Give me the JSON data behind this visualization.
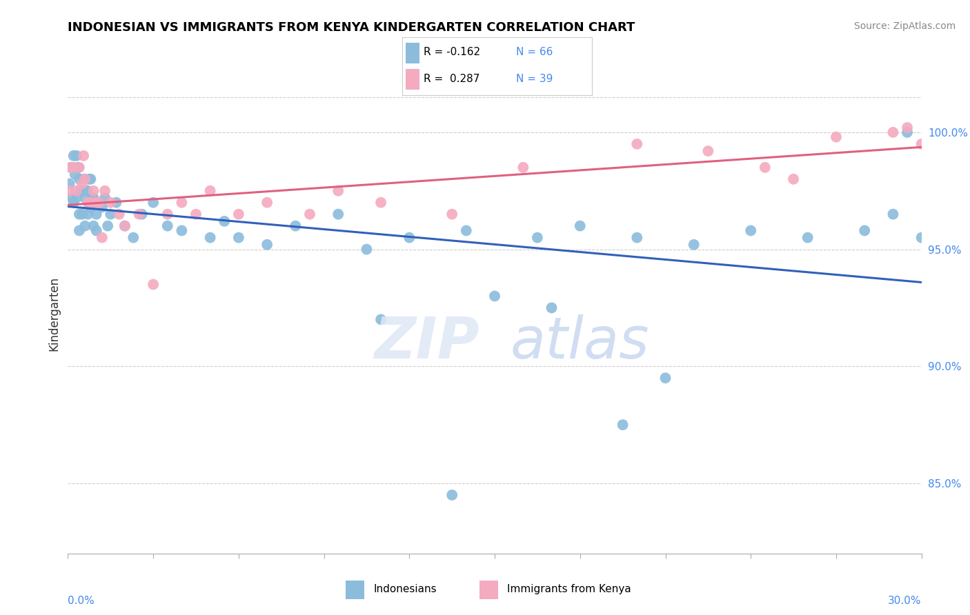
{
  "title": "INDONESIAN VS IMMIGRANTS FROM KENYA KINDERGARTEN CORRELATION CHART",
  "source": "Source: ZipAtlas.com",
  "ylabel": "Kindergarten",
  "xlim": [
    0.0,
    30.0
  ],
  "ylim": [
    82.0,
    102.5
  ],
  "yticks_right": [
    85.0,
    90.0,
    95.0,
    100.0
  ],
  "ytick_labels_right": [
    "85.0%",
    "90.0%",
    "95.0%",
    "100.0%"
  ],
  "blue_color": "#8BBCDC",
  "pink_color": "#F4AABF",
  "blue_line_color": "#3060BB",
  "pink_line_color": "#E06080",
  "indonesian_x": [
    0.05,
    0.1,
    0.15,
    0.2,
    0.2,
    0.25,
    0.3,
    0.3,
    0.35,
    0.4,
    0.4,
    0.4,
    0.45,
    0.5,
    0.5,
    0.55,
    0.6,
    0.6,
    0.65,
    0.7,
    0.7,
    0.75,
    0.8,
    0.8,
    0.85,
    0.9,
    0.9,
    1.0,
    1.0,
    1.1,
    1.2,
    1.3,
    1.4,
    1.5,
    1.7,
    2.0,
    2.3,
    2.6,
    3.0,
    3.5,
    4.0,
    5.0,
    5.5,
    6.0,
    7.0,
    8.0,
    9.5,
    10.5,
    12.0,
    14.0,
    16.5,
    18.0,
    20.0,
    22.0,
    24.0,
    26.0,
    28.0,
    29.0,
    29.5,
    30.0,
    17.0,
    19.5,
    13.5,
    21.0,
    15.0,
    11.0
  ],
  "indonesian_y": [
    97.8,
    98.5,
    97.2,
    99.0,
    97.0,
    98.2,
    99.0,
    97.2,
    98.5,
    98.0,
    96.5,
    95.8,
    97.5,
    97.5,
    96.5,
    98.0,
    97.2,
    96.0,
    97.5,
    97.5,
    96.5,
    98.0,
    98.0,
    96.8,
    97.2,
    97.2,
    96.0,
    96.5,
    95.8,
    97.0,
    96.8,
    97.2,
    96.0,
    96.5,
    97.0,
    96.0,
    95.5,
    96.5,
    97.0,
    96.0,
    95.8,
    95.5,
    96.2,
    95.5,
    95.2,
    96.0,
    96.5,
    95.0,
    95.5,
    95.8,
    95.5,
    96.0,
    95.5,
    95.2,
    95.8,
    95.5,
    95.8,
    96.5,
    100.0,
    95.5,
    92.5,
    87.5,
    84.5,
    89.5,
    93.0,
    92.0
  ],
  "kenya_x": [
    0.05,
    0.1,
    0.2,
    0.3,
    0.4,
    0.5,
    0.55,
    0.6,
    0.7,
    0.8,
    0.9,
    1.0,
    1.1,
    1.2,
    1.3,
    1.5,
    1.8,
    2.0,
    2.5,
    3.0,
    3.5,
    4.0,
    4.5,
    5.0,
    6.0,
    7.0,
    8.5,
    9.5,
    11.0,
    13.5,
    16.0,
    20.0,
    22.5,
    24.5,
    27.0,
    29.0,
    29.5,
    30.0,
    25.5
  ],
  "kenya_y": [
    97.5,
    98.5,
    98.5,
    97.5,
    98.5,
    97.8,
    99.0,
    98.0,
    97.0,
    97.0,
    97.5,
    97.0,
    97.0,
    95.5,
    97.5,
    97.0,
    96.5,
    96.0,
    96.5,
    93.5,
    96.5,
    97.0,
    96.5,
    97.5,
    96.5,
    97.0,
    96.5,
    97.5,
    97.0,
    96.5,
    98.5,
    99.5,
    99.2,
    98.5,
    99.8,
    100.0,
    100.2,
    99.5,
    98.0
  ]
}
